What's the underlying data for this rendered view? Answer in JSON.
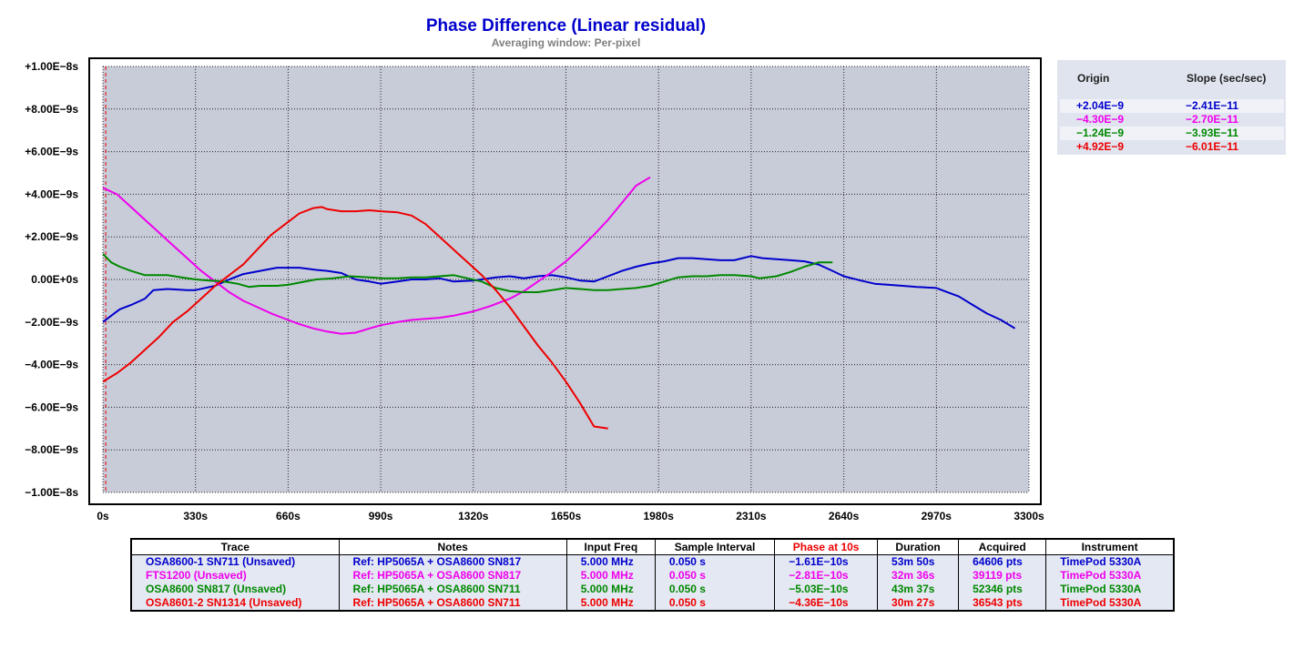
{
  "title": "Phase Difference (Linear residual)",
  "subtitle": "Averaging window: Per-pixel",
  "legend": {
    "origin_header": "Origin",
    "slope_header": "Slope (sec/sec)",
    "rows": [
      {
        "origin": "+2.04E−9",
        "slope": "−2.41E−11",
        "color": "#0000cc"
      },
      {
        "origin": "−4.30E−9",
        "slope": "−2.70E−11",
        "color": "#ee00ee"
      },
      {
        "origin": "−1.24E−9",
        "slope": "−3.93E−11",
        "color": "#008800"
      },
      {
        "origin": "+4.92E−9",
        "slope": "−6.01E−11",
        "color": "#ee0000"
      }
    ]
  },
  "table": {
    "headers": [
      "Trace",
      "Notes",
      "Input Freq",
      "Sample Interval",
      "Phase at 10s",
      "Duration",
      "Acquired",
      "Instrument"
    ],
    "phase_header_color": "#ee0000",
    "rows": [
      {
        "color": "#0000cc",
        "cells": [
          "OSA8600-1 SN711 (Unsaved)",
          "Ref: HP5065A + OSA8600 SN817",
          "5.000 MHz",
          "0.050 s",
          "−1.61E−10s",
          "53m 50s",
          "64606 pts",
          "TimePod 5330A"
        ]
      },
      {
        "color": "#ee00ee",
        "cells": [
          "FTS1200 (Unsaved)",
          "Ref: HP5065A + OSA8600 SN817",
          "5.000 MHz",
          "0.050 s",
          "−2.81E−10s",
          "32m 36s",
          "39119 pts",
          "TimePod 5330A"
        ]
      },
      {
        "color": "#008800",
        "cells": [
          "OSA8600 SN817 (Unsaved)",
          "Ref: HP5065A + OSA8600 SN711",
          "5.000 MHz",
          "0.050 s",
          "−5.03E−10s",
          "43m 37s",
          "52346 pts",
          "TimePod 5330A"
        ]
      },
      {
        "color": "#ee0000",
        "cells": [
          "OSA8601-2 SN1314 (Unsaved)",
          "Ref: HP5065A + OSA8600 SN711",
          "5.000 MHz",
          "0.050 s",
          "−4.36E−10s",
          "30m 27s",
          "36543 pts",
          "TimePod 5330A"
        ]
      }
    ]
  },
  "chart_data": {
    "type": "line",
    "title": "Phase Difference (Linear residual)",
    "subtitle": "Averaging window: Per-pixel",
    "xlim": [
      0,
      3300
    ],
    "ylim": [
      -1e-08,
      1e-08
    ],
    "x_ticks": [
      0,
      330,
      660,
      990,
      1320,
      1650,
      1980,
      2310,
      2640,
      2970,
      3300
    ],
    "x_tick_labels": [
      "0s",
      "330s",
      "660s",
      "990s",
      "1320s",
      "1650s",
      "1980s",
      "2310s",
      "2640s",
      "2970s",
      "3300s"
    ],
    "y_ticks": [
      1e-08,
      8e-09,
      6e-09,
      4e-09,
      2e-09,
      0,
      -2e-09,
      -4e-09,
      -6e-09,
      -8e-09,
      -1e-08
    ],
    "y_tick_labels": [
      "+1.00E−8s",
      "+8.00E−9s",
      "+6.00E−9s",
      "+4.00E−9s",
      "+2.00E−9s",
      "0.00E+0s",
      "−2.00E−9s",
      "−4.00E−9s",
      "−6.00E−9s",
      "−8.00E−9s",
      "−1.00E−8s"
    ],
    "grid": true,
    "plot_bg": "#c8ccd8",
    "marker_x": 10,
    "marker_color": "#ee0000",
    "series": [
      {
        "color": "#0000cc",
        "x": [
          0,
          30,
          60,
          100,
          150,
          180,
          230,
          300,
          330,
          400,
          450,
          500,
          560,
          620,
          660,
          700,
          760,
          800,
          850,
          900,
          950,
          990,
          1050,
          1100,
          1150,
          1200,
          1250,
          1320,
          1400,
          1450,
          1500,
          1550,
          1600,
          1650,
          1700,
          1750,
          1800,
          1850,
          1900,
          1950,
          2000,
          2050,
          2100,
          2150,
          2200,
          2250,
          2310,
          2350,
          2400,
          2450,
          2500,
          2550,
          2600,
          2640,
          2700,
          2750,
          2800,
          2850,
          2900,
          2970,
          3000,
          3050,
          3100,
          3150,
          3200,
          3250
        ],
        "y": [
          -2e-09,
          -1.7e-09,
          -1.4e-09,
          -1.2e-09,
          -9e-10,
          -5e-10,
          -4.5e-10,
          -5e-10,
          -5e-10,
          -3e-10,
          0.0,
          2.5e-10,
          4e-10,
          5.5e-10,
          5.5e-10,
          5.5e-10,
          4.5e-10,
          4e-10,
          3e-10,
          0.0,
          -1e-10,
          -2e-10,
          -1e-10,
          0.0,
          0.0,
          5e-11,
          -1e-10,
          -5e-11,
          1e-10,
          1.5e-10,
          5e-11,
          1.5e-10,
          2e-10,
          1e-10,
          -5e-11,
          -1e-10,
          1.5e-10,
          4e-10,
          6e-10,
          7.5e-10,
          8.5e-10,
          1e-09,
          1e-09,
          9.5e-10,
          9e-10,
          9e-10,
          1.1e-09,
          1e-09,
          9.5e-10,
          9e-10,
          8.5e-10,
          7e-10,
          4e-10,
          1.5e-10,
          -5e-11,
          -2e-10,
          -2.5e-10,
          -3e-10,
          -3.5e-10,
          -4e-10,
          -5.5e-10,
          -8e-10,
          -1.2e-09,
          -1.6e-09,
          -1.9e-09,
          -2.3e-09
        ]
      },
      {
        "color": "#ee00ee",
        "x": [
          0,
          50,
          100,
          150,
          200,
          250,
          300,
          350,
          400,
          450,
          500,
          550,
          600,
          660,
          700,
          750,
          800,
          850,
          900,
          950,
          990,
          1050,
          1100,
          1150,
          1200,
          1250,
          1320,
          1380,
          1450,
          1500,
          1550,
          1600,
          1650,
          1700,
          1750,
          1800,
          1850,
          1900,
          1950
        ],
        "y": [
          4.3e-09,
          4e-09,
          3.4e-09,
          2.8e-09,
          2.2e-09,
          1.6e-09,
          1e-09,
          4e-10,
          -1e-10,
          -6e-10,
          -1e-09,
          -1.3e-09,
          -1.6e-09,
          -1.9e-09,
          -2.1e-09,
          -2.3e-09,
          -2.45e-09,
          -2.55e-09,
          -2.5e-09,
          -2.3e-09,
          -2.15e-09,
          -2e-09,
          -1.9e-09,
          -1.85e-09,
          -1.8e-09,
          -1.7e-09,
          -1.5e-09,
          -1.25e-09,
          -9e-10,
          -5.5e-10,
          -1e-10,
          3.5e-10,
          8.5e-10,
          1.45e-09,
          2.1e-09,
          2.8e-09,
          3.6e-09,
          4.4e-09,
          4.8e-09
        ]
      },
      {
        "color": "#008800",
        "x": [
          0,
          30,
          60,
          100,
          150,
          180,
          230,
          280,
          330,
          380,
          430,
          480,
          520,
          560,
          620,
          660,
          700,
          760,
          820,
          880,
          950,
          1000,
          1050,
          1100,
          1150,
          1200,
          1250,
          1300,
          1350,
          1400,
          1450,
          1500,
          1550,
          1600,
          1650,
          1700,
          1750,
          1800,
          1850,
          1900,
          1950,
          2000,
          2050,
          2100,
          2150,
          2200,
          2250,
          2310,
          2340,
          2400,
          2450,
          2500,
          2550,
          2600
        ],
        "y": [
          1.2e-09,
          8e-10,
          6e-10,
          4e-10,
          2e-10,
          2e-10,
          2e-10,
          1e-10,
          0.0,
          -5e-11,
          -1e-10,
          -2e-10,
          -3.5e-10,
          -3e-10,
          -3e-10,
          -2.5e-10,
          -1.5e-10,
          0.0,
          5e-11,
          1.5e-10,
          1e-10,
          5e-11,
          5e-11,
          1e-10,
          1e-10,
          1.5e-10,
          2e-10,
          5e-11,
          -1e-10,
          -4e-10,
          -5.5e-10,
          -6e-10,
          -6e-10,
          -5e-10,
          -4e-10,
          -4.5e-10,
          -5e-10,
          -5e-10,
          -4.5e-10,
          -4e-10,
          -3e-10,
          -1e-10,
          1e-10,
          1.5e-10,
          1.5e-10,
          2e-10,
          2e-10,
          1.5e-10,
          5e-11,
          1.5e-10,
          3.5e-10,
          6e-10,
          8e-10,
          8e-10
        ]
      },
      {
        "color": "#ee0000",
        "x": [
          0,
          50,
          100,
          150,
          200,
          250,
          300,
          350,
          400,
          450,
          500,
          550,
          600,
          660,
          700,
          750,
          780,
          800,
          850,
          900,
          950,
          990,
          1050,
          1100,
          1150,
          1200,
          1250,
          1300,
          1350,
          1400,
          1450,
          1500,
          1550,
          1600,
          1650,
          1700,
          1750,
          1800
        ],
        "y": [
          -4.8e-09,
          -4.4e-09,
          -3.9e-09,
          -3.3e-09,
          -2.7e-09,
          -2e-09,
          -1.5e-09,
          -9e-10,
          -3e-10,
          2e-10,
          7e-10,
          1.4e-09,
          2.1e-09,
          2.7e-09,
          3.1e-09,
          3.35e-09,
          3.4e-09,
          3.3e-09,
          3.2e-09,
          3.2e-09,
          3.25e-09,
          3.2e-09,
          3.15e-09,
          3e-09,
          2.6e-09,
          2e-09,
          1.4e-09,
          8e-10,
          2e-10,
          -5e-10,
          -1.3e-09,
          -2.2e-09,
          -3.1e-09,
          -3.9e-09,
          -4.8e-09,
          -5.8e-09,
          -6.9e-09,
          -7e-09
        ]
      }
    ]
  }
}
